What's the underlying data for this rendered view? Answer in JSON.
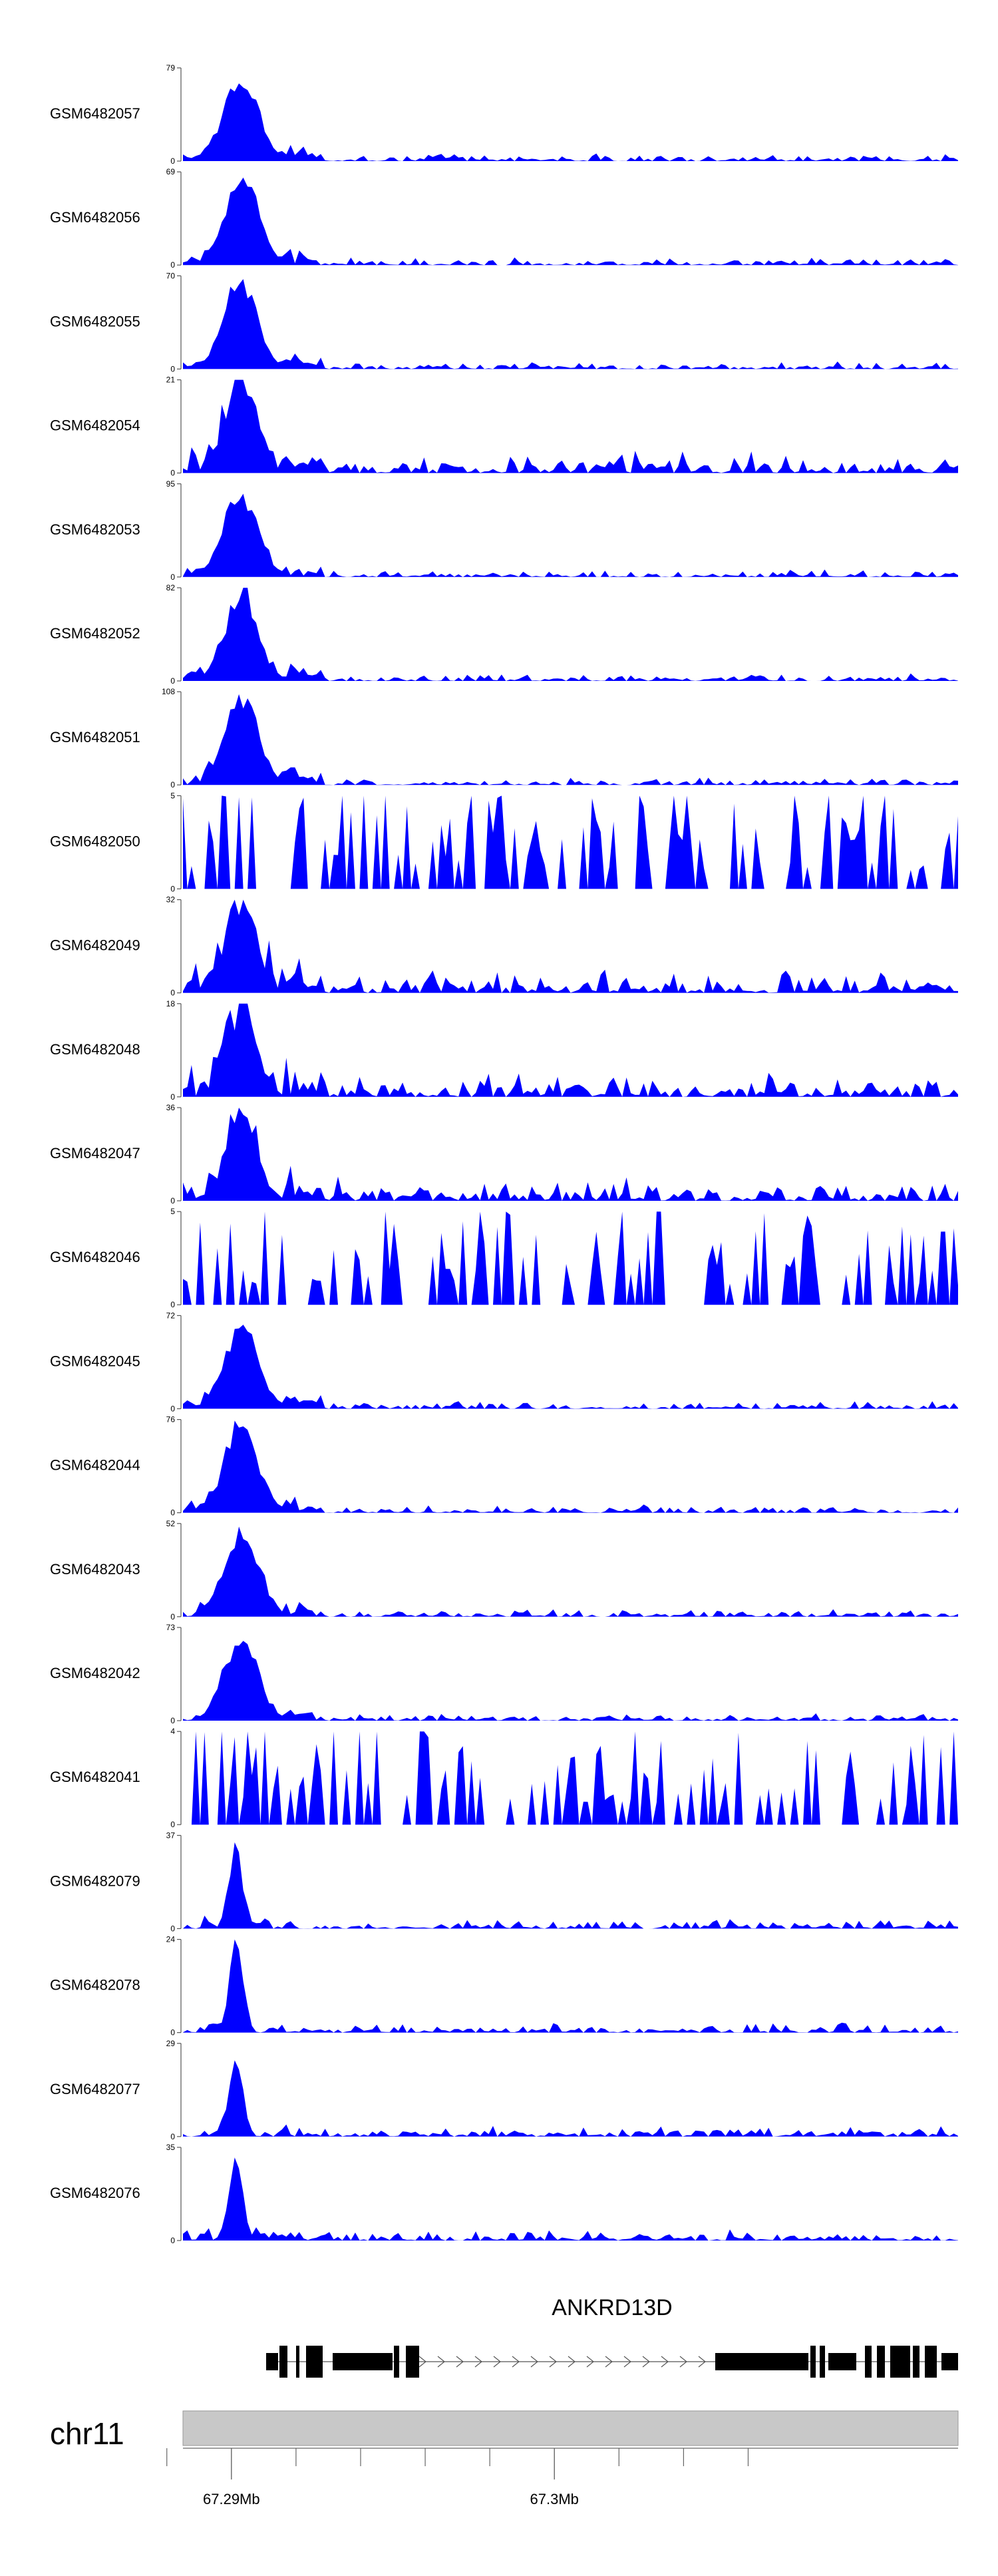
{
  "chart_data": {
    "type": "area",
    "description_role": "genome-browser coverage tracks",
    "fill_color": "#0000ff",
    "gene_color": "#000000",
    "ideogram_color": "#c8c8c8",
    "region": {
      "chromosome": "chr11",
      "start_mb": 67.2885,
      "end_mb": 67.3125
    },
    "tracks": [
      {
        "name": "GSM6482057",
        "ymax": 79,
        "ymin": 0,
        "profile": "peak"
      },
      {
        "name": "GSM6482056",
        "ymax": 69,
        "ymin": 0,
        "profile": "peak"
      },
      {
        "name": "GSM6482055",
        "ymax": 70,
        "ymin": 0,
        "profile": "peak"
      },
      {
        "name": "GSM6482054",
        "ymax": 21,
        "ymin": 0,
        "profile": "peak-noisy"
      },
      {
        "name": "GSM6482053",
        "ymax": 95,
        "ymin": 0,
        "profile": "peak"
      },
      {
        "name": "GSM6482052",
        "ymax": 82,
        "ymin": 0,
        "profile": "peak"
      },
      {
        "name": "GSM6482051",
        "ymax": 108,
        "ymin": 0,
        "profile": "peak"
      },
      {
        "name": "GSM6482050",
        "ymax": 5,
        "ymin": 0,
        "profile": "sparse"
      },
      {
        "name": "GSM6482049",
        "ymax": 32,
        "ymin": 0,
        "profile": "peak-noisy"
      },
      {
        "name": "GSM6482048",
        "ymax": 18,
        "ymin": 0,
        "profile": "peak-noisy"
      },
      {
        "name": "GSM6482047",
        "ymax": 36,
        "ymin": 0,
        "profile": "peak-noisy"
      },
      {
        "name": "GSM6482046",
        "ymax": 5,
        "ymin": 0,
        "profile": "sparse"
      },
      {
        "name": "GSM6482045",
        "ymax": 72,
        "ymin": 0,
        "profile": "peak"
      },
      {
        "name": "GSM6482044",
        "ymax": 76,
        "ymin": 0,
        "profile": "peak"
      },
      {
        "name": "GSM6482043",
        "ymax": 52,
        "ymin": 0,
        "profile": "peak"
      },
      {
        "name": "GSM6482042",
        "ymax": 73,
        "ymin": 0,
        "profile": "peak"
      },
      {
        "name": "GSM6482041",
        "ymax": 4,
        "ymin": 0,
        "profile": "sparse"
      },
      {
        "name": "GSM6482079",
        "ymax": 37,
        "ymin": 0,
        "profile": "narrow-peak"
      },
      {
        "name": "GSM6482078",
        "ymax": 24,
        "ymin": 0,
        "profile": "narrow-peak"
      },
      {
        "name": "GSM6482077",
        "ymax": 29,
        "ymin": 0,
        "profile": "narrow-peak"
      },
      {
        "name": "GSM6482076",
        "ymax": 35,
        "ymin": 0,
        "profile": "narrow-peak"
      }
    ],
    "gene": {
      "name": "ANKRD13D",
      "strand": "+"
    },
    "axis": {
      "major_ticks": [
        {
          "label": "67.29Mb",
          "value": 67.29
        },
        {
          "label": "67.3Mb",
          "value": 67.3
        }
      ],
      "minor_ticks": [
        67.288,
        67.292,
        67.294,
        67.296,
        67.298,
        67.302,
        67.304,
        67.306
      ]
    }
  }
}
